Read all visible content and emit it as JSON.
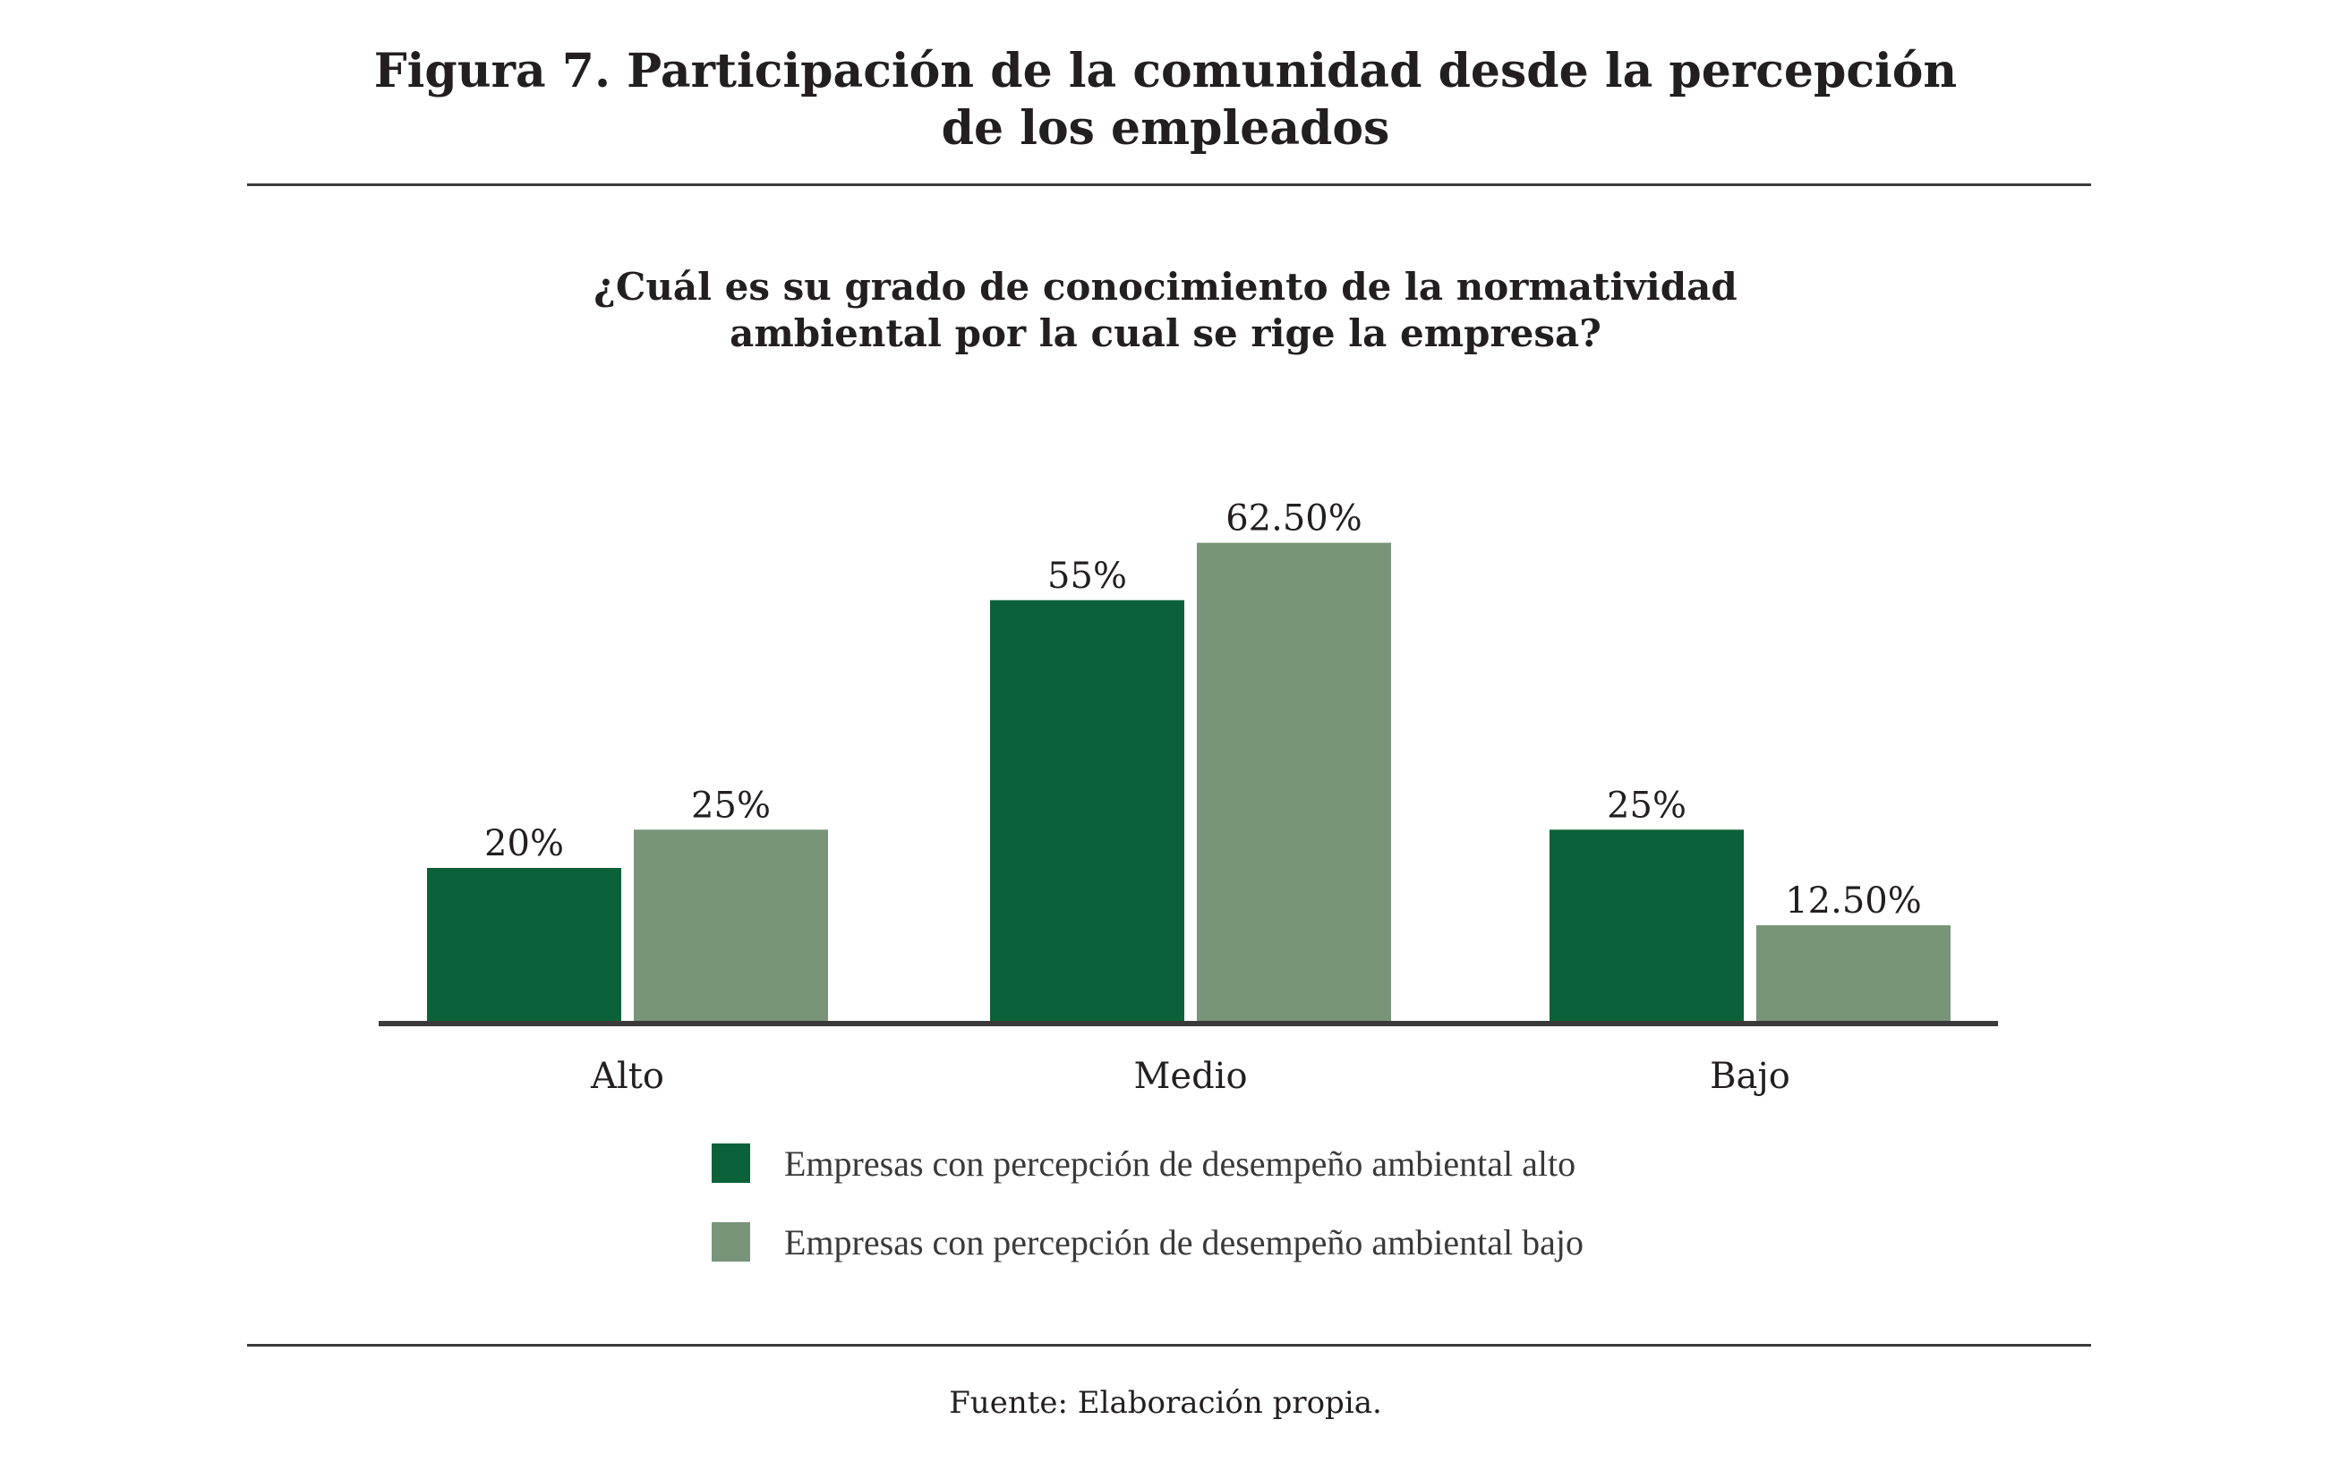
{
  "figure": {
    "title_line1": "Figura 7. Participación de la comunidad desde la percepción",
    "title_line2": "de los empleados",
    "source": "Fuente: Elaboración propia."
  },
  "chart_data": {
    "type": "bar",
    "title": "¿Cuál es su grado de conocimiento de la normatividad ambiental por la cual se rige la empresa?",
    "title_line1": "¿Cuál es su grado de conocimiento de la normatividad",
    "title_line2": "ambiental por la cual se rige la empresa?",
    "xlabel": "",
    "ylabel": "",
    "categories": [
      "Alto",
      "Medio",
      "Bajo"
    ],
    "series": [
      {
        "name": "Empresas con percepción de desempeño ambiental alto",
        "color": "#0b6238",
        "values": [
          20,
          55,
          25
        ],
        "labels": [
          "20%",
          "55%",
          "25%"
        ]
      },
      {
        "name": "Empresas con percepción de desempeño ambiental bajo",
        "color": "#789579",
        "values": [
          25,
          62.5,
          12.5
        ],
        "labels": [
          "25%",
          "62.50%",
          "12.50%"
        ]
      }
    ],
    "ylim": [
      0,
      70
    ],
    "grid": false,
    "y_axis_visible": false,
    "legend_position": "bottom",
    "axis_color": "#3a3a3a"
  }
}
